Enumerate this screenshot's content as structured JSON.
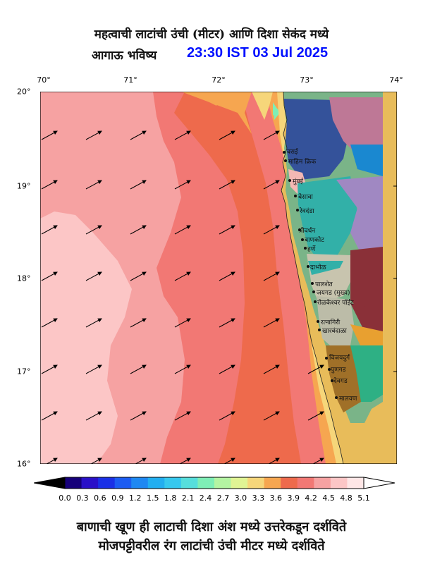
{
  "title_line1": "महत्वाची लाटांची उंची (मीटर) आणि दिशा सेकंद मध्ये",
  "title_line2_prefix": "आगाऊ भविष्य",
  "title_line2_time": "23:30 IST 03 Jul 2025",
  "x_ticks": [
    "70°",
    "71°",
    "72°",
    "73°",
    "74°"
  ],
  "y_ticks": [
    "20°",
    "19°",
    "18°",
    "17°",
    "16°"
  ],
  "colorbar": {
    "labels": [
      "0.0",
      "0.3",
      "0.6",
      "0.9",
      "1.2",
      "1.5",
      "1.8",
      "2.1",
      "2.4",
      "2.7",
      "3.0",
      "3.3",
      "3.6",
      "3.9",
      "4.2",
      "4.5",
      "4.8",
      "5.1"
    ],
    "colors": [
      "#16007a",
      "#2a10c8",
      "#1a30e6",
      "#1c5cf2",
      "#1e88f2",
      "#22aef0",
      "#36c8ee",
      "#56dedc",
      "#7eeeb6",
      "#b4f4a2",
      "#e0f494",
      "#f6d67a",
      "#f6a650",
      "#ee6a4c",
      "#f27874",
      "#f6a2a2",
      "#fcc6c6",
      "#fee6e6"
    ]
  },
  "places": [
    "वसई",
    "माहिम क्रिक",
    "मुंबई",
    "बेसावा",
    "रेवदंडा",
    "श्रीवर्धन",
    "बाणकोट",
    "हर्णे",
    "दाभोळ",
    "पालशेत",
    "जयगड (मुख्य)",
    "रोळकेश्वर पॉईंट",
    "रत्नागिरी",
    "खारबंदाळा",
    "विजयदुर्ग",
    "पुणगड",
    "देवगड",
    "मालवण"
  ],
  "footer_line1": "बाणाची खूण ही लाटाची दिशा अंश मध्ये उत्तरेकडून दर्शविते",
  "footer_line2": "मोजपट्टीवरील रंग लाटांची उंची मीटर मध्ये दर्शविते"
}
